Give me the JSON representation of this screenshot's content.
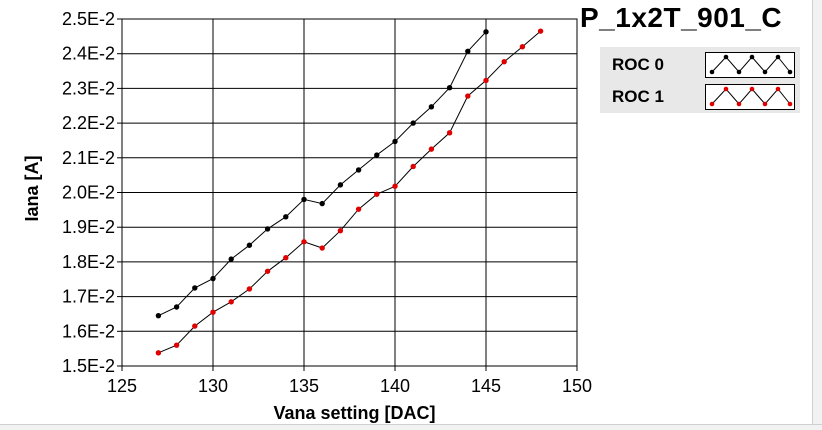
{
  "chart_data": {
    "type": "line",
    "title": "P_1x2T_901_C",
    "xlabel": "Vana setting [DAC]",
    "ylabel": "Iana [A]",
    "xlim": [
      125,
      150
    ],
    "ylim": [
      0.015,
      0.025
    ],
    "x_ticks": [
      125,
      130,
      135,
      140,
      145,
      150
    ],
    "x_tick_labels": [
      "125",
      "130",
      "135",
      "140",
      "145",
      "150"
    ],
    "y_ticks": [
      0.015,
      0.016,
      0.017,
      0.018,
      0.019,
      0.02,
      0.021,
      0.022,
      0.023,
      0.024,
      0.025
    ],
    "y_tick_labels": [
      "1.5E-2",
      "1.6E-2",
      "1.7E-2",
      "1.8E-2",
      "1.9E-2",
      "2.0E-2",
      "2.1E-2",
      "2.2E-2",
      "2.3E-2",
      "2.4E-2",
      "2.5E-2"
    ],
    "grid": true,
    "legend_position": "right",
    "series": [
      {
        "name": "ROC 0",
        "color": "#000000",
        "line_color": "#000000",
        "x": [
          127,
          128,
          129,
          130,
          131,
          132,
          133,
          134,
          135,
          136,
          137,
          138,
          139,
          140,
          141,
          142,
          143,
          144,
          145
        ],
        "y": [
          0.01645,
          0.0167,
          0.01725,
          0.01752,
          0.01808,
          0.01848,
          0.01895,
          0.0193,
          0.0198,
          0.01968,
          0.02022,
          0.02065,
          0.02108,
          0.02147,
          0.022,
          0.02247,
          0.02302,
          0.02407,
          0.02463
        ]
      },
      {
        "name": "ROC 1",
        "color": "#e00000",
        "line_color": "#000000",
        "x": [
          127,
          128,
          129,
          130,
          131,
          132,
          133,
          134,
          135,
          136,
          137,
          138,
          139,
          140,
          141,
          142,
          143,
          144,
          145,
          146,
          147,
          148
        ],
        "y": [
          0.01538,
          0.0156,
          0.01615,
          0.01655,
          0.01685,
          0.01722,
          0.01773,
          0.01812,
          0.01858,
          0.0184,
          0.0189,
          0.01952,
          0.01995,
          0.02018,
          0.02075,
          0.02125,
          0.02172,
          0.02278,
          0.02323,
          0.02377,
          0.0242,
          0.02465
        ]
      }
    ]
  },
  "legend": {
    "items": [
      {
        "label": "ROC 0",
        "marker_color": "#000000"
      },
      {
        "label": "ROC 1",
        "marker_color": "#e00000"
      }
    ]
  }
}
